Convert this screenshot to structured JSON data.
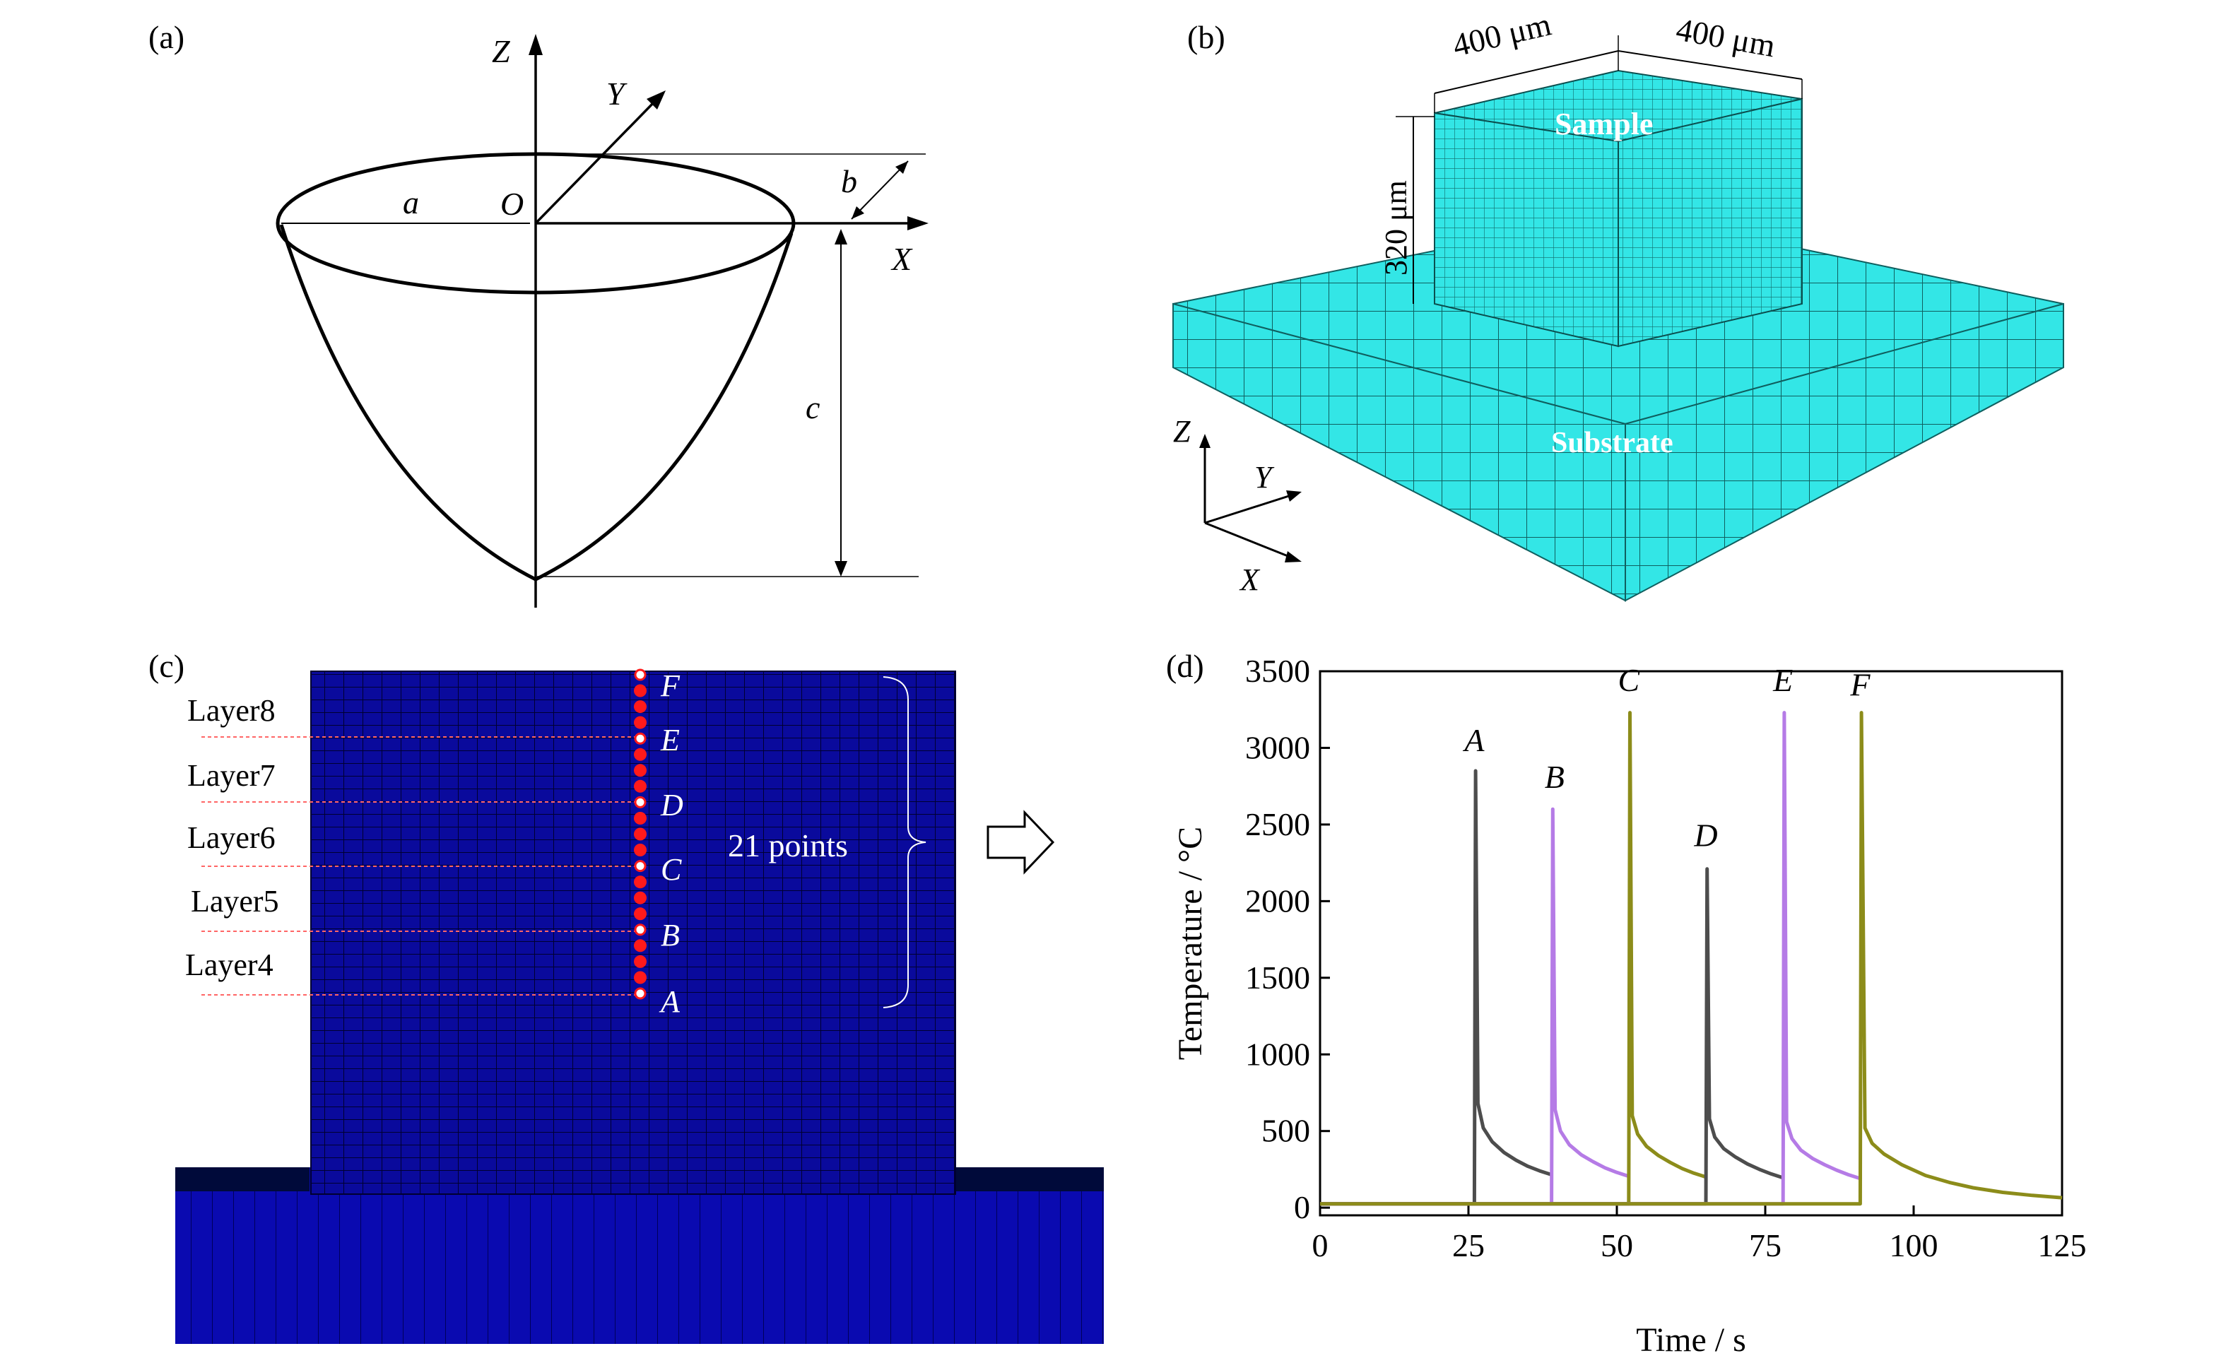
{
  "panels": {
    "a": {
      "label": "(a)",
      "axes": {
        "z": "Z",
        "y": "Y",
        "x": "X",
        "origin": "O"
      },
      "dims": {
        "a": "a",
        "b": "b",
        "c": "c"
      }
    },
    "b": {
      "label": "(b)",
      "dim_width": "400 μm",
      "dim_depth": "400 μm",
      "dim_height": "320 μm",
      "sample_label": "Sample",
      "substrate_label": "Substrate",
      "axes": {
        "z": "Z",
        "y": "Y",
        "x": "X"
      },
      "colors": {
        "mesh": "#33e6e6",
        "mesh_dark": "#20b8b8",
        "mesh_side": "#28cccc"
      }
    },
    "c": {
      "label": "(c)",
      "layers": [
        "Layer8",
        "Layer7",
        "Layer6",
        "Layer5",
        "Layer4"
      ],
      "points": [
        "F",
        "E",
        "D",
        "C",
        "B",
        "A"
      ],
      "points_label": "21 points",
      "colors": {
        "mesh": "#0a0a9c",
        "points": "#ff1a1a",
        "layer_lines": "#ff6666"
      }
    },
    "d": {
      "label": "(d)"
    }
  },
  "chart_data": {
    "type": "line",
    "xlabel": "Time / s",
    "ylabel": "Temperature / °C",
    "xlim": [
      0,
      125
    ],
    "ylim": [
      -50,
      3500
    ],
    "xticks": [
      0,
      25,
      50,
      75,
      100,
      125
    ],
    "yticks": [
      0,
      500,
      1000,
      1500,
      2000,
      2500,
      3000,
      3500
    ],
    "grid": false,
    "colors": {
      "A": "#4d4d4d",
      "B": "#b57be6",
      "C": "#8c8c1a",
      "D": "#4d4d4d",
      "E": "#b57be6",
      "F": "#8c8c1a"
    },
    "series": [
      {
        "name": "A",
        "x": [
          0,
          26,
          26.2,
          26.6,
          27.5,
          29,
          31,
          33,
          35,
          37,
          39
        ],
        "y": [
          25,
          25,
          2850,
          680,
          520,
          430,
          360,
          310,
          270,
          240,
          215
        ]
      },
      {
        "name": "B",
        "x": [
          0,
          39,
          39.2,
          39.6,
          40.5,
          42,
          44,
          46,
          48,
          50,
          52
        ],
        "y": [
          25,
          25,
          2600,
          640,
          500,
          410,
          345,
          300,
          260,
          230,
          205
        ]
      },
      {
        "name": "C",
        "x": [
          0,
          52,
          52.2,
          52.6,
          53.5,
          55,
          57,
          59,
          61,
          63,
          65
        ],
        "y": [
          25,
          25,
          3230,
          600,
          480,
          400,
          340,
          295,
          255,
          225,
          200
        ]
      },
      {
        "name": "D",
        "x": [
          0,
          65,
          65.2,
          65.6,
          66.5,
          68,
          70,
          72,
          74,
          76,
          78
        ],
        "y": [
          25,
          25,
          2210,
          580,
          460,
          385,
          330,
          285,
          250,
          220,
          195
        ]
      },
      {
        "name": "E",
        "x": [
          0,
          78,
          78.2,
          78.6,
          79.5,
          81,
          83,
          85,
          87,
          89,
          91
        ],
        "y": [
          25,
          25,
          3230,
          560,
          450,
          375,
          320,
          280,
          245,
          215,
          190
        ]
      },
      {
        "name": "F",
        "x": [
          0,
          91,
          91.2,
          91.8,
          93,
          95,
          98,
          102,
          106,
          110,
          115,
          120,
          125
        ],
        "y": [
          25,
          25,
          3230,
          520,
          420,
          350,
          280,
          210,
          165,
          130,
          100,
          80,
          65
        ]
      }
    ],
    "annotations": [
      {
        "text": "A",
        "x": 26,
        "y": 2980
      },
      {
        "text": "B",
        "x": 39.5,
        "y": 2740
      },
      {
        "text": "C",
        "x": 52,
        "y": 3370
      },
      {
        "text": "D",
        "x": 65,
        "y": 2360
      },
      {
        "text": "E",
        "x": 78,
        "y": 3370
      },
      {
        "text": "F",
        "x": 91,
        "y": 3340
      }
    ]
  }
}
